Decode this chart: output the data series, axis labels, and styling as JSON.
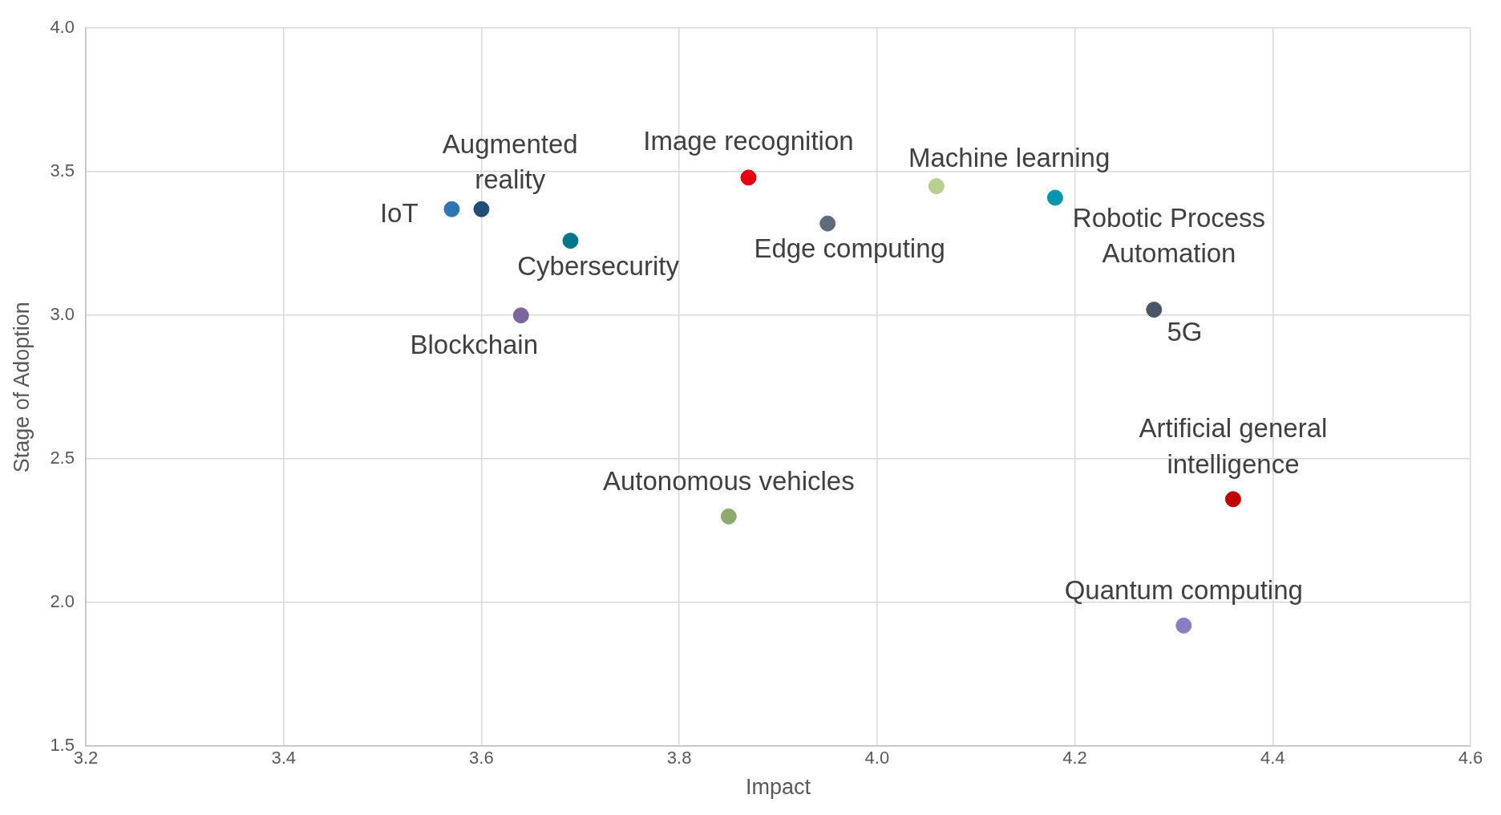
{
  "chart_data": {
    "type": "scatter",
    "xlabel": "Impact",
    "ylabel": "Stage of Adoption",
    "xlim": [
      3.2,
      4.6
    ],
    "xticks": [
      3.2,
      3.4,
      3.6,
      3.8,
      {
        "value": 4,
        "label": "4.0"
      },
      4.2,
      4.4,
      4.6
    ],
    "ylim": [
      1.5,
      4
    ],
    "yticks": [
      1.5,
      {
        "value": 2,
        "label": "2.0"
      },
      2.5,
      {
        "value": 3,
        "label": "3.0"
      },
      3.5,
      {
        "value": 4,
        "label": "4.0"
      }
    ],
    "grid": true,
    "legend": false,
    "marker": "circle",
    "series": [
      {
        "name": "IoT",
        "color": "#2e75b6",
        "x": [
          3.57
        ],
        "values": [
          3.37
        ]
      },
      {
        "name": "Augmented reality",
        "color": "#1f4e79",
        "x": [
          3.6
        ],
        "values": [
          3.37
        ]
      },
      {
        "name": "Cybersecurity",
        "color": "#00778e",
        "x": [
          3.69
        ],
        "values": [
          3.26
        ]
      },
      {
        "name": "Blockchain",
        "color": "#7a659f",
        "x": [
          3.64
        ],
        "values": [
          3.0
        ]
      },
      {
        "name": "Image recognition",
        "color": "#e50012",
        "x": [
          3.87
        ],
        "values": [
          3.48
        ]
      },
      {
        "name": "Edge computing",
        "color": "#5f6b7d",
        "x": [
          3.95
        ],
        "values": [
          3.32
        ]
      },
      {
        "name": "Machine learning",
        "color": "#b8d08e",
        "x": [
          4.06
        ],
        "values": [
          3.45
        ]
      },
      {
        "name": "Robotic Process Automation",
        "color": "#0096b0",
        "x": [
          4.18
        ],
        "values": [
          3.41
        ]
      },
      {
        "name": "5G",
        "color": "#4a5568",
        "x": [
          4.28
        ],
        "values": [
          3.02
        ]
      },
      {
        "name": "Artificial general intelligence",
        "color": "#c00000",
        "x": [
          4.36
        ],
        "values": [
          2.36
        ]
      },
      {
        "name": "Autonomous vehicles",
        "color": "#8faa6e",
        "x": [
          3.85
        ],
        "values": [
          2.3
        ]
      },
      {
        "name": "Quantum computing",
        "color": "#8e7cc3",
        "x": [
          4.31
        ],
        "values": [
          1.92
        ]
      }
    ]
  }
}
